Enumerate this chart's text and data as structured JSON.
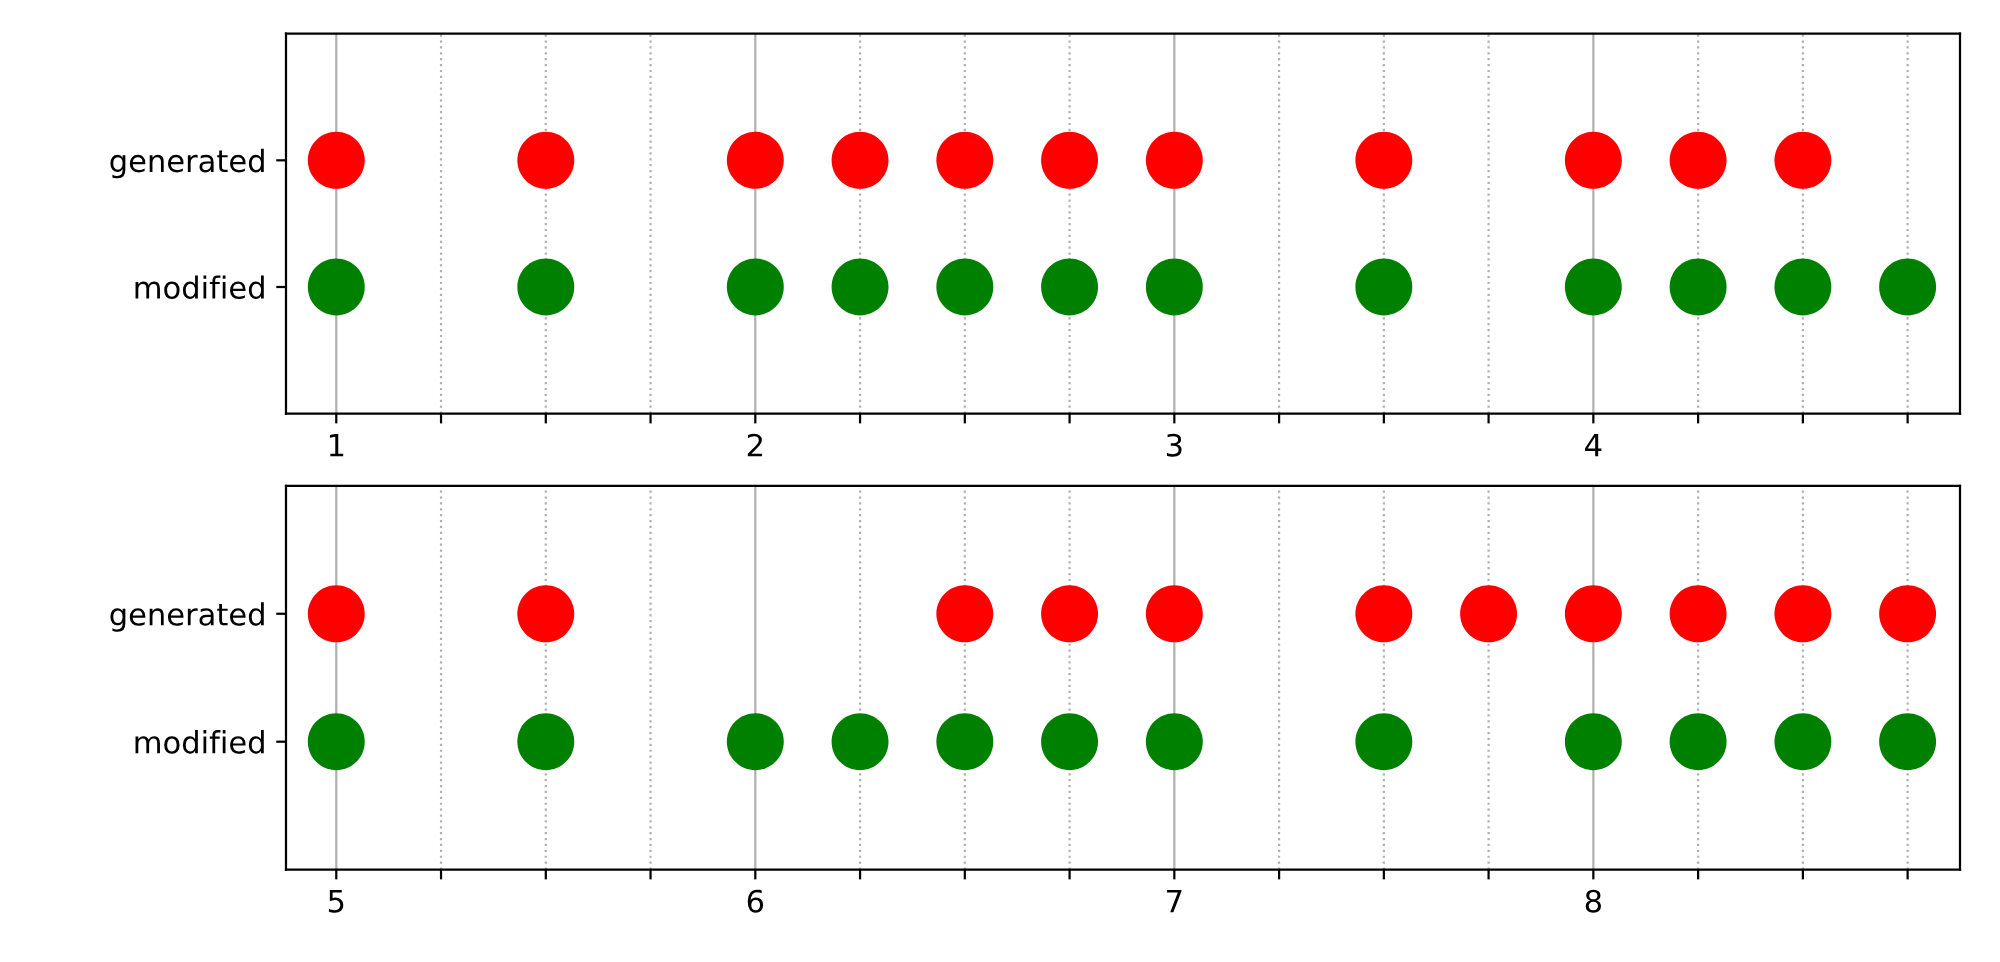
{
  "chart_data": [
    {
      "type": "scatter",
      "orientation": "horizontal",
      "categories": [
        "generated",
        "modified"
      ],
      "xlim": [
        0.88,
        4.875
      ],
      "xticks": [
        1,
        {
          "value": 1.25,
          "label": null
        },
        {
          "value": 1.5,
          "label": null
        },
        {
          "value": 1.75,
          "label": null
        },
        2,
        {
          "value": 2.25,
          "label": null
        },
        {
          "value": 2.5,
          "label": null
        },
        {
          "value": 2.75,
          "label": null
        },
        3,
        {
          "value": 3.25,
          "label": null
        },
        {
          "value": 3.5,
          "label": null
        },
        {
          "value": 3.75,
          "label": null
        },
        4,
        {
          "value": 4.25,
          "label": null
        },
        {
          "value": 4.5,
          "label": null
        },
        {
          "value": 4.75,
          "label": null
        }
      ],
      "grid": "x",
      "marker": "circle",
      "series": [
        {
          "colors": [
            "#ff0000",
            "#008000"
          ],
          "values": [
            1,
            1
          ]
        },
        {
          "colors": [
            "#ff0000",
            "#008000"
          ],
          "values": [
            1.5,
            1.5
          ]
        },
        {
          "colors": [
            "#ff0000",
            "#008000"
          ],
          "values": [
            2,
            2
          ]
        },
        {
          "colors": [
            "#ff0000",
            "#008000"
          ],
          "values": [
            2.25,
            2.25
          ]
        },
        {
          "colors": [
            "#ff0000",
            "#008000"
          ],
          "values": [
            2.5,
            2.5
          ]
        },
        {
          "colors": [
            "#ff0000",
            "#008000"
          ],
          "values": [
            2.75,
            2.75
          ]
        },
        {
          "colors": [
            "#ff0000",
            "#008000"
          ],
          "values": [
            3,
            3
          ]
        },
        {
          "colors": [
            "#ff0000",
            "#008000"
          ],
          "values": [
            3.5,
            3.5
          ]
        },
        {
          "colors": [
            "#ff0000",
            "#008000"
          ],
          "values": [
            4,
            4
          ]
        },
        {
          "colors": [
            "#ff0000",
            "#008000"
          ],
          "values": [
            4.25,
            4.25
          ]
        },
        {
          "colors": [
            "#ff0000",
            "#008000"
          ],
          "values": [
            4.5,
            4.5
          ]
        },
        {
          "colors": [
            "#ff0000",
            "#008000"
          ],
          "values": [
            null,
            4.75
          ]
        }
      ]
    },
    {
      "type": "scatter",
      "orientation": "horizontal",
      "categories": [
        "generated",
        "modified"
      ],
      "xlim": [
        4.88,
        8.875
      ],
      "xticks": [
        5,
        {
          "value": 5.25,
          "label": null
        },
        {
          "value": 5.5,
          "label": null
        },
        {
          "value": 5.75,
          "label": null
        },
        6,
        {
          "value": 6.25,
          "label": null
        },
        {
          "value": 6.5,
          "label": null
        },
        {
          "value": 6.75,
          "label": null
        },
        7,
        {
          "value": 7.25,
          "label": null
        },
        {
          "value": 7.5,
          "label": null
        },
        {
          "value": 7.75,
          "label": null
        },
        8,
        {
          "value": 8.25,
          "label": null
        },
        {
          "value": 8.5,
          "label": null
        },
        {
          "value": 8.75,
          "label": null
        }
      ],
      "grid": "x",
      "marker": "circle",
      "series": [
        {
          "colors": [
            "#ff0000",
            "#008000"
          ],
          "values": [
            5,
            5
          ]
        },
        {
          "colors": [
            "#ff0000",
            "#008000"
          ],
          "values": [
            5.5,
            5.5
          ]
        },
        {
          "colors": [
            "#ff0000",
            "#008000"
          ],
          "values": [
            null,
            6
          ]
        },
        {
          "colors": [
            "#ff0000",
            "#008000"
          ],
          "values": [
            null,
            6.25
          ]
        },
        {
          "colors": [
            "#ff0000",
            "#008000"
          ],
          "values": [
            6.5,
            6.5
          ]
        },
        {
          "colors": [
            "#ff0000",
            "#008000"
          ],
          "values": [
            6.75,
            6.75
          ]
        },
        {
          "colors": [
            "#ff0000",
            "#008000"
          ],
          "values": [
            7,
            7
          ]
        },
        {
          "colors": [
            "#ff0000",
            "#008000"
          ],
          "values": [
            7.5,
            7.5
          ]
        },
        {
          "colors": [
            "#ff0000",
            "#008000"
          ],
          "values": [
            7.75,
            null
          ]
        },
        {
          "colors": [
            "#ff0000",
            "#008000"
          ],
          "values": [
            8,
            8
          ]
        },
        {
          "colors": [
            "#ff0000",
            "#008000"
          ],
          "values": [
            8.25,
            8.25
          ]
        },
        {
          "colors": [
            "#ff0000",
            "#008000"
          ],
          "values": [
            8.5,
            8.5
          ]
        },
        {
          "colors": [
            "#ff0000",
            "#008000"
          ],
          "values": [
            8.75,
            8.75
          ]
        }
      ]
    }
  ]
}
